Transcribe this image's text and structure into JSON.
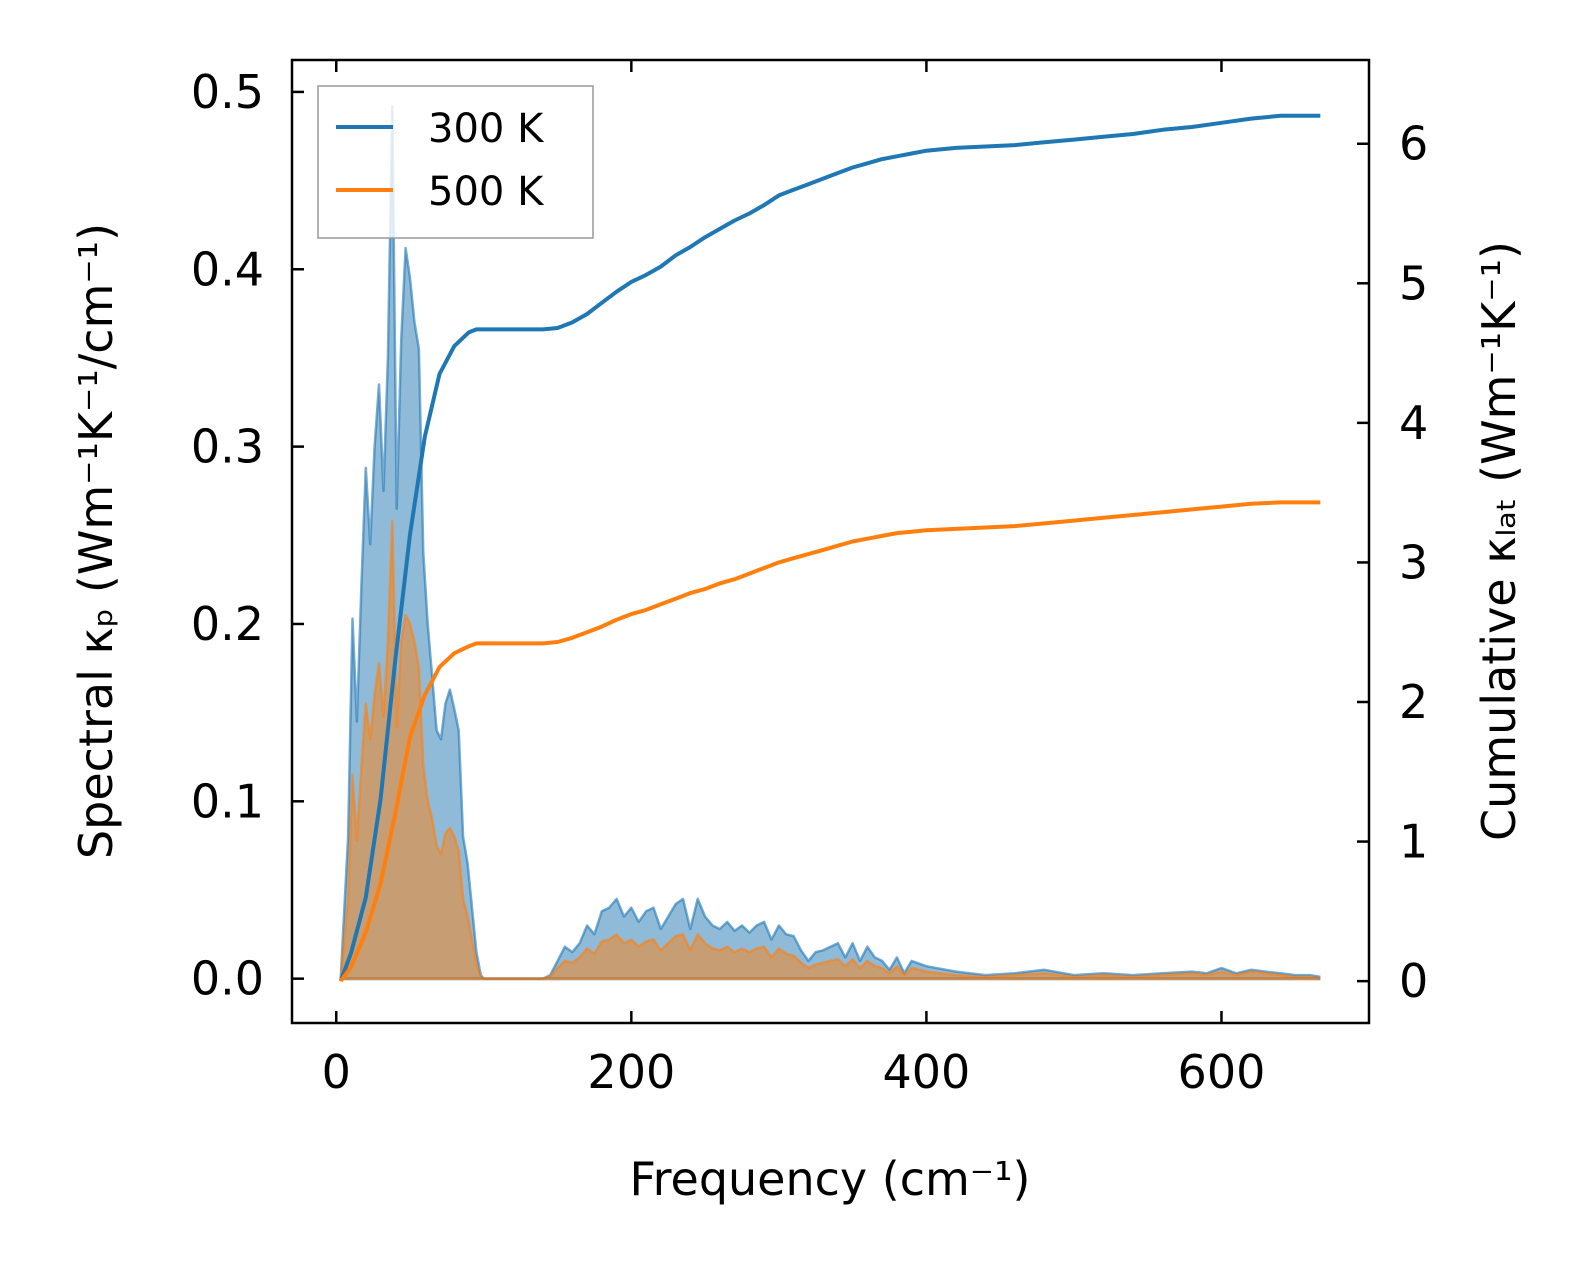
{
  "chart_data": {
    "type": "area+line",
    "xlabel": "Frequency (cm⁻¹)",
    "ylabel_left": "Spectral κₚ (Wm⁻¹K⁻¹/cm⁻¹)",
    "ylabel_right": "Cumulative κₗₐₜ (Wm⁻¹K⁻¹)",
    "x_ticks": [
      "0",
      "200",
      "400",
      "600"
    ],
    "y_left_ticks": [
      "0.0",
      "0.1",
      "0.2",
      "0.3",
      "0.4",
      "0.5"
    ],
    "y_right_ticks": [
      "0",
      "1",
      "2",
      "3",
      "4",
      "5",
      "6"
    ],
    "xlim": [
      -30,
      700
    ],
    "ylim_left": [
      -0.025,
      0.518
    ],
    "ylim_right": [
      -0.3,
      6.6
    ],
    "legend": {
      "position": "upper-left",
      "entries": [
        "300 K",
        "500 K"
      ]
    },
    "series": [
      {
        "name": "300 K",
        "color": "#1f77b4",
        "spectral": {
          "x": [
            3,
            8,
            11,
            14,
            17,
            20,
            23,
            26,
            29,
            32,
            35,
            38,
            41,
            44,
            47,
            50,
            53,
            56,
            59,
            62,
            65,
            68,
            71,
            74,
            77,
            80,
            83,
            86,
            89,
            92,
            95,
            98,
            100,
            110,
            120,
            130,
            140,
            145,
            150,
            155,
            160,
            165,
            170,
            175,
            180,
            185,
            190,
            195,
            200,
            205,
            210,
            215,
            220,
            225,
            230,
            235,
            240,
            245,
            250,
            255,
            260,
            265,
            270,
            275,
            280,
            285,
            290,
            295,
            300,
            305,
            310,
            315,
            320,
            325,
            330,
            335,
            340,
            345,
            350,
            355,
            360,
            365,
            370,
            375,
            380,
            385,
            390,
            400,
            420,
            440,
            460,
            480,
            500,
            520,
            540,
            560,
            580,
            590,
            600,
            610,
            620,
            630,
            640,
            650,
            660,
            667
          ],
          "y": [
            0.0,
            0.08,
            0.203,
            0.145,
            0.22,
            0.288,
            0.245,
            0.3,
            0.335,
            0.275,
            0.35,
            0.492,
            0.265,
            0.36,
            0.412,
            0.395,
            0.37,
            0.355,
            0.24,
            0.2,
            0.17,
            0.14,
            0.135,
            0.155,
            0.163,
            0.152,
            0.14,
            0.08,
            0.065,
            0.04,
            0.015,
            0.002,
            0.0,
            0.0,
            0.0,
            0.0,
            0.0,
            0.002,
            0.01,
            0.018,
            0.015,
            0.02,
            0.03,
            0.025,
            0.038,
            0.04,
            0.045,
            0.035,
            0.04,
            0.032,
            0.038,
            0.04,
            0.028,
            0.035,
            0.042,
            0.045,
            0.028,
            0.045,
            0.035,
            0.03,
            0.028,
            0.032,
            0.027,
            0.03,
            0.026,
            0.03,
            0.032,
            0.022,
            0.03,
            0.025,
            0.024,
            0.016,
            0.01,
            0.015,
            0.016,
            0.018,
            0.02,
            0.012,
            0.02,
            0.01,
            0.018,
            0.012,
            0.01,
            0.005,
            0.012,
            0.003,
            0.01,
            0.007,
            0.004,
            0.002,
            0.003,
            0.005,
            0.002,
            0.003,
            0.002,
            0.003,
            0.004,
            0.003,
            0.006,
            0.003,
            0.005,
            0.004,
            0.003,
            0.002,
            0.002,
            0.001
          ]
        },
        "cumulative": {
          "x": [
            3,
            10,
            20,
            30,
            40,
            50,
            60,
            70,
            80,
            90,
            95,
            100,
            120,
            140,
            150,
            160,
            170,
            180,
            190,
            200,
            210,
            220,
            230,
            240,
            250,
            260,
            270,
            280,
            290,
            300,
            310,
            320,
            330,
            340,
            350,
            360,
            370,
            380,
            390,
            400,
            420,
            440,
            460,
            480,
            500,
            520,
            540,
            560,
            580,
            600,
            620,
            640,
            667
          ],
          "y": [
            0.0,
            0.2,
            0.6,
            1.3,
            2.3,
            3.2,
            3.9,
            4.35,
            4.55,
            4.65,
            4.67,
            4.67,
            4.67,
            4.67,
            4.68,
            4.72,
            4.78,
            4.86,
            4.94,
            5.01,
            5.06,
            5.12,
            5.2,
            5.26,
            5.33,
            5.39,
            5.45,
            5.5,
            5.56,
            5.63,
            5.67,
            5.71,
            5.75,
            5.79,
            5.83,
            5.86,
            5.89,
            5.91,
            5.93,
            5.95,
            5.97,
            5.98,
            5.99,
            6.01,
            6.03,
            6.05,
            6.07,
            6.1,
            6.12,
            6.15,
            6.18,
            6.2,
            6.2
          ]
        }
      },
      {
        "name": "500 K",
        "color": "#ff7f0e",
        "spectral": {
          "x": [
            3,
            8,
            11,
            14,
            17,
            20,
            23,
            26,
            29,
            32,
            35,
            38,
            41,
            44,
            47,
            50,
            53,
            56,
            59,
            62,
            65,
            68,
            71,
            74,
            77,
            80,
            83,
            86,
            89,
            92,
            95,
            98,
            100,
            110,
            120,
            130,
            140,
            145,
            150,
            155,
            160,
            165,
            170,
            175,
            180,
            185,
            190,
            195,
            200,
            205,
            210,
            215,
            220,
            225,
            230,
            235,
            240,
            245,
            250,
            255,
            260,
            265,
            270,
            275,
            280,
            285,
            290,
            295,
            300,
            305,
            310,
            315,
            320,
            325,
            330,
            335,
            340,
            345,
            350,
            355,
            360,
            365,
            370,
            375,
            380,
            385,
            390,
            400,
            420,
            440,
            460,
            480,
            500,
            520,
            540,
            560,
            580,
            590,
            600,
            610,
            620,
            630,
            640,
            650,
            660,
            667
          ],
          "y": [
            0.0,
            0.045,
            0.115,
            0.078,
            0.118,
            0.155,
            0.135,
            0.16,
            0.178,
            0.148,
            0.19,
            0.258,
            0.142,
            0.19,
            0.205,
            0.2,
            0.19,
            0.175,
            0.12,
            0.1,
            0.09,
            0.075,
            0.07,
            0.082,
            0.085,
            0.08,
            0.072,
            0.045,
            0.035,
            0.022,
            0.008,
            0.001,
            0.0,
            0.0,
            0.0,
            0.0,
            0.0,
            0.001,
            0.006,
            0.01,
            0.009,
            0.012,
            0.017,
            0.014,
            0.021,
            0.022,
            0.025,
            0.02,
            0.022,
            0.018,
            0.021,
            0.022,
            0.016,
            0.02,
            0.024,
            0.025,
            0.016,
            0.025,
            0.02,
            0.017,
            0.016,
            0.018,
            0.015,
            0.017,
            0.015,
            0.017,
            0.018,
            0.012,
            0.017,
            0.014,
            0.013,
            0.009,
            0.006,
            0.008,
            0.009,
            0.01,
            0.011,
            0.007,
            0.011,
            0.006,
            0.01,
            0.007,
            0.006,
            0.003,
            0.007,
            0.002,
            0.006,
            0.004,
            0.002,
            0.001,
            0.002,
            0.003,
            0.001,
            0.002,
            0.001,
            0.002,
            0.003,
            0.002,
            0.004,
            0.002,
            0.004,
            0.003,
            0.002,
            0.001,
            0.001,
            0.0
          ]
        },
        "cumulative": {
          "x": [
            3,
            10,
            20,
            30,
            40,
            50,
            60,
            70,
            80,
            90,
            95,
            100,
            120,
            140,
            150,
            160,
            170,
            180,
            190,
            200,
            210,
            220,
            230,
            240,
            250,
            260,
            270,
            280,
            290,
            300,
            310,
            320,
            330,
            340,
            350,
            360,
            370,
            380,
            390,
            400,
            420,
            440,
            460,
            480,
            500,
            520,
            540,
            560,
            580,
            600,
            620,
            640,
            667
          ],
          "y": [
            0.0,
            0.1,
            0.35,
            0.7,
            1.2,
            1.75,
            2.05,
            2.25,
            2.35,
            2.4,
            2.42,
            2.42,
            2.42,
            2.42,
            2.43,
            2.46,
            2.5,
            2.54,
            2.59,
            2.63,
            2.66,
            2.7,
            2.74,
            2.78,
            2.81,
            2.85,
            2.88,
            2.92,
            2.96,
            3.0,
            3.03,
            3.06,
            3.09,
            3.12,
            3.15,
            3.17,
            3.19,
            3.21,
            3.22,
            3.23,
            3.24,
            3.25,
            3.26,
            3.28,
            3.3,
            3.32,
            3.34,
            3.36,
            3.38,
            3.4,
            3.42,
            3.43,
            3.43
          ]
        }
      }
    ]
  }
}
